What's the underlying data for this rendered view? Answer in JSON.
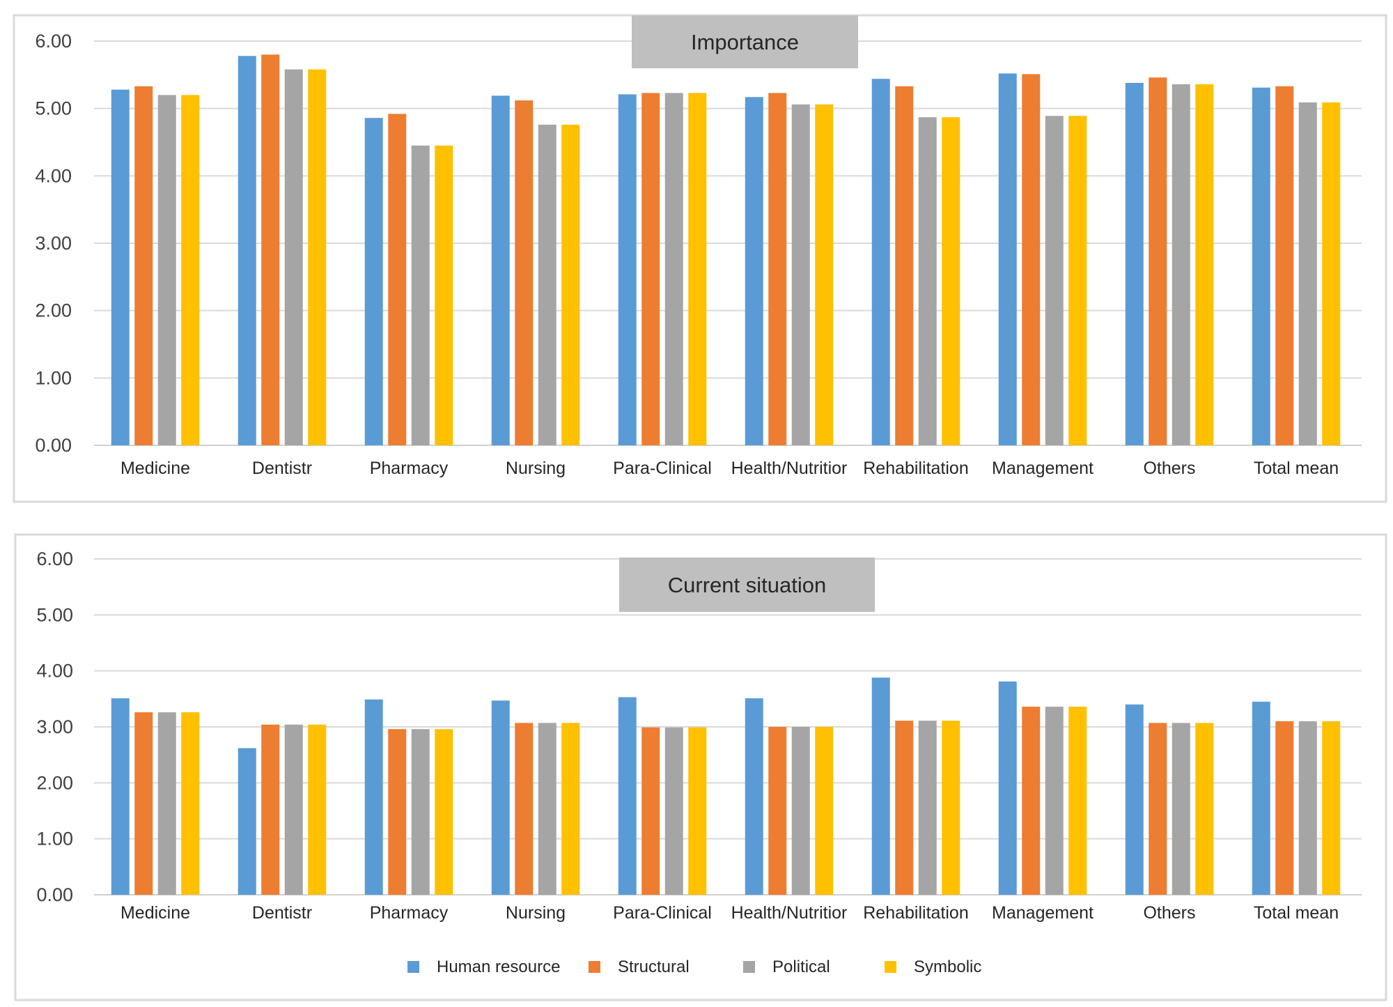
{
  "chart_data": [
    {
      "type": "bar",
      "title": "Importance",
      "categories": [
        "Medicine",
        "Dentistr",
        "Pharmacy",
        "Nursing",
        "Para-Clinical",
        "Health/Nutritior",
        "Rehabilitation",
        "Management",
        "Others",
        "Total mean"
      ],
      "series": [
        {
          "name": "Human resource",
          "color": "#5b9bd5",
          "values": [
            5.28,
            5.78,
            4.86,
            5.19,
            5.21,
            5.17,
            5.44,
            5.52,
            5.38,
            5.31
          ]
        },
        {
          "name": "Structural",
          "color": "#ed7d31",
          "values": [
            5.33,
            5.8,
            4.92,
            5.12,
            5.23,
            5.23,
            5.33,
            5.51,
            5.46,
            5.33
          ]
        },
        {
          "name": "Political",
          "color": "#a5a5a5",
          "values": [
            5.2,
            5.58,
            4.45,
            4.76,
            5.23,
            5.06,
            4.87,
            4.89,
            5.36,
            5.09
          ]
        },
        {
          "name": "Symbolic",
          "color": "#ffc000",
          "values": [
            5.2,
            5.58,
            4.45,
            4.76,
            5.23,
            5.06,
            4.87,
            4.89,
            5.36,
            5.09
          ]
        }
      ],
      "yticks": [
        "0.00",
        "1.00",
        "2.00",
        "3.00",
        "4.00",
        "5.00",
        "6.00"
      ],
      "ylim": [
        0,
        6
      ],
      "grid": true
    },
    {
      "type": "bar",
      "title": "Current situation",
      "categories": [
        "Medicine",
        "Dentistr",
        "Pharmacy",
        "Nursing",
        "Para-Clinical",
        "Health/Nutritior",
        "Rehabilitation",
        "Management",
        "Others",
        "Total mean"
      ],
      "series": [
        {
          "name": "Human resource",
          "color": "#5b9bd5",
          "values": [
            3.51,
            2.62,
            3.49,
            3.47,
            3.53,
            3.51,
            3.88,
            3.81,
            3.4,
            3.45
          ]
        },
        {
          "name": "Structural",
          "color": "#ed7d31",
          "values": [
            3.26,
            3.04,
            2.96,
            3.07,
            2.99,
            3.0,
            3.11,
            3.36,
            3.07,
            3.1
          ]
        },
        {
          "name": "Political",
          "color": "#a5a5a5",
          "values": [
            3.26,
            3.04,
            2.96,
            3.07,
            2.99,
            3.0,
            3.11,
            3.36,
            3.07,
            3.1
          ]
        },
        {
          "name": "Symbolic",
          "color": "#ffc000",
          "values": [
            3.26,
            3.04,
            2.96,
            3.07,
            2.99,
            3.0,
            3.11,
            3.36,
            3.07,
            3.1
          ]
        }
      ],
      "yticks": [
        "0.00",
        "1.00",
        "2.00",
        "3.00",
        "4.00",
        "5.00",
        "6.00"
      ],
      "ylim": [
        0,
        6
      ],
      "grid": true,
      "legend_position": "bottom"
    }
  ]
}
